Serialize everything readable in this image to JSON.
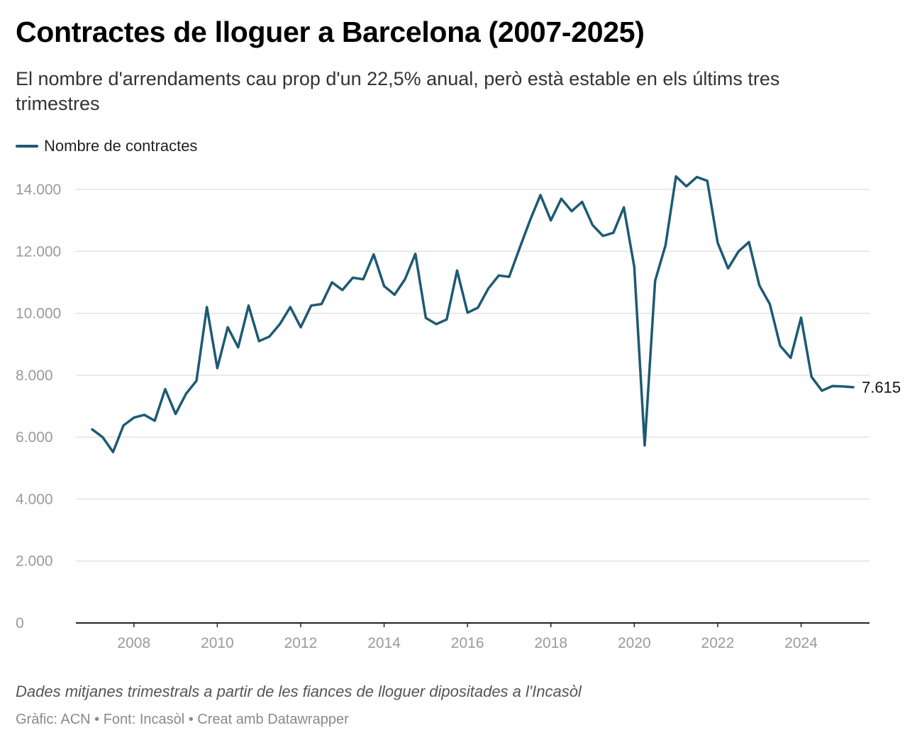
{
  "header": {
    "title": "Contractes de lloguer a Barcelona (2007-2025)",
    "subtitle": "El nombre d'arrendaments cau prop d'un 22,5% anual, però està estable en els últims tres trimestres"
  },
  "legend": {
    "label": "Nombre de contractes"
  },
  "footer": {
    "note": "Dades mitjanes trimestrals a partir de les fiances de lloguer dipositades a l'Incasòl",
    "credits": "Gràfic: ACN • Font: Incasòl • Creat amb Datawrapper"
  },
  "colors": {
    "line": "#1d5a73",
    "grid": "#e2e2e2",
    "axis": "#222222",
    "tick_text": "#9a9a9a"
  },
  "chart_data": {
    "type": "line",
    "title": "Contractes de lloguer a Barcelona (2007-2025)",
    "xlabel": "",
    "ylabel": "",
    "ylim": [
      0,
      14000
    ],
    "xlim": [
      "2007-T1",
      "2025-T2"
    ],
    "x_ticks": [
      "2008",
      "2010",
      "2012",
      "2014",
      "2016",
      "2018",
      "2020",
      "2022",
      "2024"
    ],
    "y_ticks": [
      {
        "value": 0,
        "label": "0"
      },
      {
        "value": 2000,
        "label": "2.000"
      },
      {
        "value": 4000,
        "label": "4.000"
      },
      {
        "value": 6000,
        "label": "6.000"
      },
      {
        "value": 8000,
        "label": "8.000"
      },
      {
        "value": 10000,
        "label": "10.000"
      },
      {
        "value": 12000,
        "label": "12.000"
      },
      {
        "value": 14000,
        "label": "14.000"
      }
    ],
    "grid": true,
    "legend_position": "top-left",
    "end_label": "7.615",
    "categories": [
      "2007-T1",
      "2007-T2",
      "2007-T3",
      "2007-T4",
      "2008-T1",
      "2008-T2",
      "2008-T3",
      "2008-T4",
      "2009-T1",
      "2009-T2",
      "2009-T3",
      "2009-T4",
      "2010-T1",
      "2010-T2",
      "2010-T3",
      "2010-T4",
      "2011-T1",
      "2011-T2",
      "2011-T3",
      "2011-T4",
      "2012-T1",
      "2012-T2",
      "2012-T3",
      "2012-T4",
      "2013-T1",
      "2013-T2",
      "2013-T3",
      "2013-T4",
      "2014-T1",
      "2014-T2",
      "2014-T3",
      "2014-T4",
      "2015-T1",
      "2015-T2",
      "2015-T3",
      "2015-T4",
      "2016-T1",
      "2016-T2",
      "2016-T3",
      "2016-T4",
      "2017-T1",
      "2017-T2",
      "2017-T3",
      "2017-T4",
      "2018-T1",
      "2018-T2",
      "2018-T3",
      "2018-T4",
      "2019-T1",
      "2019-T2",
      "2019-T3",
      "2019-T4",
      "2020-T1",
      "2020-T2",
      "2020-T3",
      "2020-T4",
      "2021-T1",
      "2021-T2",
      "2021-T3",
      "2021-T4",
      "2022-T1",
      "2022-T2",
      "2022-T3",
      "2022-T4",
      "2023-T1",
      "2023-T2",
      "2023-T3",
      "2023-T4",
      "2024-T1",
      "2024-T2",
      "2024-T3",
      "2024-T4",
      "2025-T1",
      "2025-T2"
    ],
    "series": [
      {
        "name": "Nombre de contractes",
        "values": [
          6250,
          6000,
          5520,
          6380,
          6630,
          6720,
          6530,
          7550,
          6750,
          7400,
          7820,
          10200,
          8230,
          9550,
          8900,
          10250,
          9100,
          9250,
          9650,
          10200,
          9550,
          10250,
          10300,
          11000,
          10750,
          11150,
          11100,
          11900,
          10880,
          10600,
          11100,
          11920,
          9850,
          9650,
          9800,
          11380,
          10020,
          10180,
          10800,
          11220,
          11180,
          12100,
          13000,
          13820,
          13000,
          13700,
          13300,
          13600,
          12850,
          12500,
          12600,
          13420,
          11500,
          5730,
          11050,
          12200,
          14420,
          14100,
          14400,
          14280,
          12280,
          11450,
          12000,
          12300,
          10900,
          10300,
          8950,
          8560,
          9860,
          7950,
          7500,
          7650,
          7640,
          7615
        ]
      }
    ]
  }
}
